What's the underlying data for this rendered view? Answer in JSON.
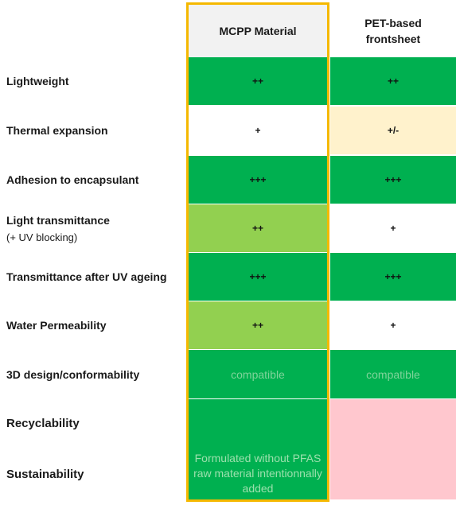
{
  "columns": {
    "mcpp": "MCPP Material",
    "pet": "PET-based frontsheet"
  },
  "rows": [
    {
      "label": "Lightweight",
      "sub": "",
      "mcpp": "++",
      "pet": "++"
    },
    {
      "label": "Thermal expansion",
      "sub": "",
      "mcpp": "+",
      "pet": "+/-"
    },
    {
      "label": "Adhesion to encapsulant",
      "sub": "",
      "mcpp": "+++",
      "pet": "+++"
    },
    {
      "label": "Light transmittance",
      "sub": "(+ UV blocking)",
      "mcpp": "++",
      "pet": "+"
    },
    {
      "label": "Transmittance after UV ageing",
      "sub": "",
      "mcpp": "+++",
      "pet": "+++"
    },
    {
      "label": "Water Permeability",
      "sub": "",
      "mcpp": "++",
      "pet": "+"
    },
    {
      "label": "3D design/conformability",
      "sub": "",
      "mcpp": "compatible",
      "pet": "compatible"
    },
    {
      "label": "Recyclability",
      "sub": "",
      "mcpp": "",
      "pet": ""
    },
    {
      "label": "Sustainability",
      "sub": "",
      "mcpp": "Formulated without PFAS raw material intentionnally added",
      "pet": ""
    }
  ],
  "colors": {
    "green": "#00b050",
    "light_green": "#92d050",
    "beige": "#fff2cc",
    "pink": "#ffc7ce",
    "header_gray": "#f2f2f2",
    "highlight": "#f5b800"
  }
}
